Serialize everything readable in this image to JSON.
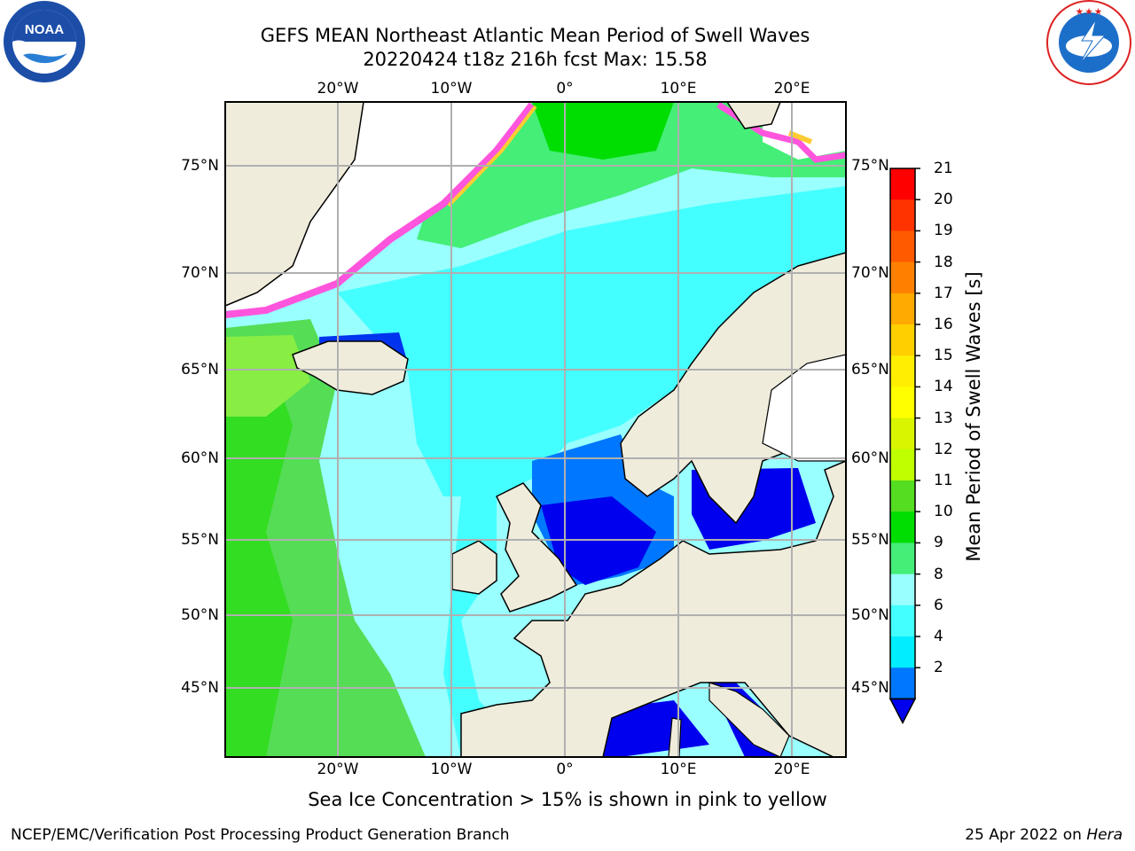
{
  "title_line1": "GEFS MEAN Northeast Atlantic Mean Period of Swell Waves",
  "title_line2": "20220424 t18z 216h fcst   Max: 15.58",
  "lon_ticks": [
    "20°W",
    "10°W",
    "0°",
    "10°E",
    "20°E"
  ],
  "lat_ticks": [
    "75°N",
    "70°N",
    "65°N",
    "60°N",
    "55°N",
    "50°N",
    "45°N"
  ],
  "colorbar": {
    "label": "Mean Period of Swell Waves [s]",
    "ticks": [
      "21",
      "20",
      "19",
      "18",
      "17",
      "16",
      "15",
      "14",
      "13",
      "12",
      "11",
      "10",
      "9",
      "8",
      "6",
      "4",
      "2"
    ],
    "colors": [
      "#ff0000",
      "#ff3300",
      "#ff5a00",
      "#ff8000",
      "#ffaa00",
      "#ffd000",
      "#ffee00",
      "#ffff00",
      "#d9f500",
      "#bfff00",
      "#55dd22",
      "#00dd00",
      "#44ee77",
      "#99ffff",
      "#44ffff",
      "#00eeff",
      "#0077ff"
    ]
  },
  "logos": {
    "left": {
      "text": "NOAA",
      "ring_text": "NATIONAL OCEANIC AND ATMOSPHERIC ADMINISTRATION · U.S. DEPARTMENT OF COMMERCE"
    },
    "right": {
      "ring_text": "NATIONAL WEATHER SERVICE"
    }
  },
  "caption": "Sea Ice Concentration > 15% is shown in pink to yellow",
  "footer_left": "NCEP/EMC/Verification Post Processing Product Generation Branch",
  "footer_right_prefix": "25 Apr 2022 on ",
  "footer_right_host": "Hera",
  "colors": {
    "land": "#efecdc",
    "ice_pink": "#ff55dd",
    "ice_yellow": "#ffcc33",
    "grid": "#b0b0b0"
  }
}
